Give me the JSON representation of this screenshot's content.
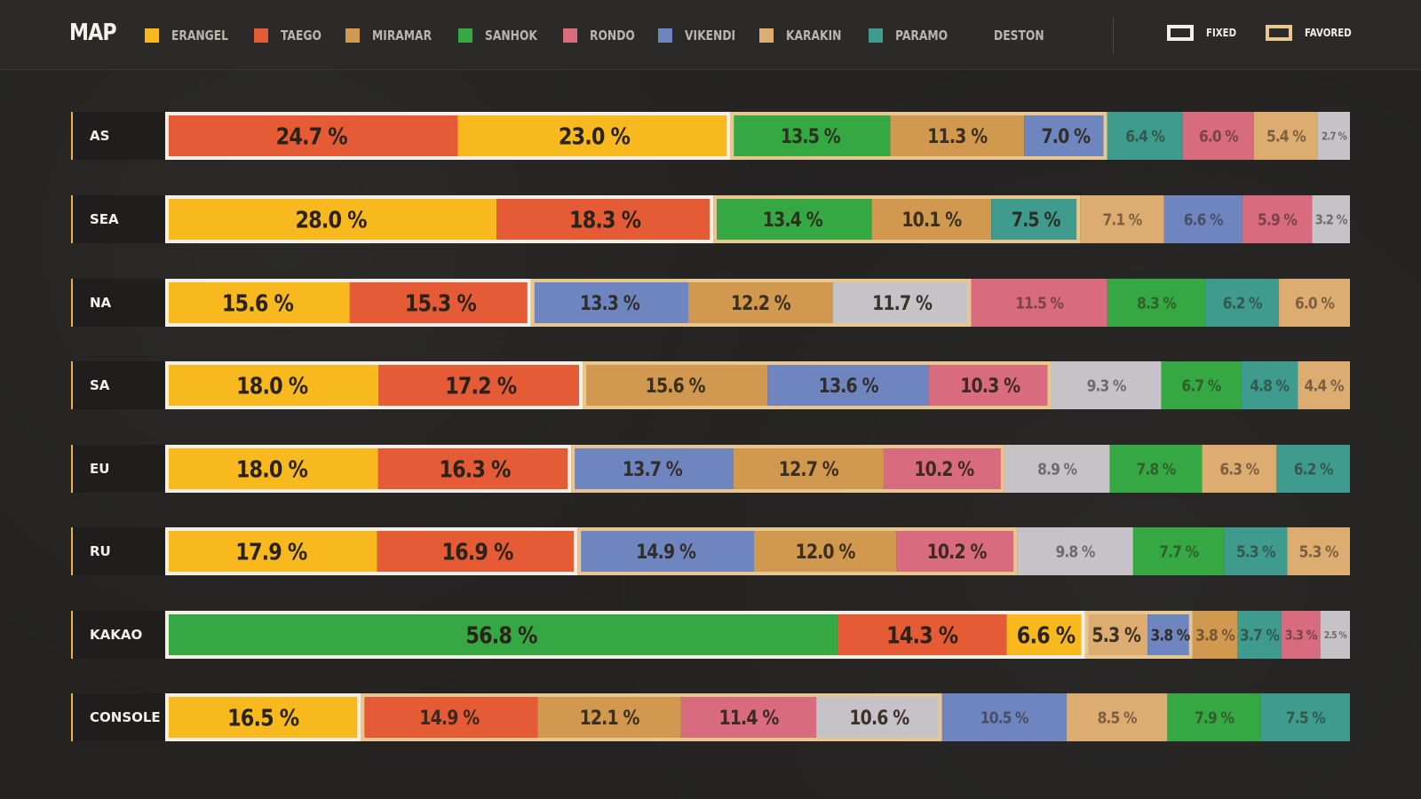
{
  "title": "MAP",
  "legend": [
    {
      "key": "erangel",
      "label": "ERANGEL",
      "color": "#f8b91e"
    },
    {
      "key": "taego",
      "label": "TAEGO",
      "color": "#e45b36"
    },
    {
      "key": "miramar",
      "label": "MIRAMAR",
      "color": "#d1994f"
    },
    {
      "key": "sanhok",
      "label": "SANHOK",
      "color": "#36a843"
    },
    {
      "key": "rondo",
      "label": "RONDO",
      "color": "#d96b7e"
    },
    {
      "key": "vikendi",
      "label": "VIKENDI",
      "color": "#6e85c0"
    },
    {
      "key": "karakin",
      "label": "KARAKIN",
      "color": "#dcac70"
    },
    {
      "key": "paramo",
      "label": "PARAMO",
      "color": "#3e9b8d"
    },
    {
      "key": "deston",
      "label": "DESTON",
      "color": "#c6c3c8"
    }
  ],
  "key_fixed": "FIXED",
  "key_favored": "FAVORED",
  "colors": {
    "fixed_border": "#f3efe6",
    "favored_border": "#e7c78f",
    "row_label_bg": "#1f1e1c",
    "row_accent": "#e9b340",
    "text_dark": "#2a231a"
  },
  "chart_data": {
    "type": "bar",
    "orientation": "horizontal-stacked",
    "unit": "%",
    "regions": [
      {
        "region": "AS",
        "segments": [
          {
            "map": "taego",
            "value": 24.7,
            "label": "24.7 %",
            "group": "fixed"
          },
          {
            "map": "erangel",
            "value": 23.0,
            "label": "23.0 %",
            "group": "fixed"
          },
          {
            "map": "sanhok",
            "value": 13.5,
            "label": "13.5 %",
            "group": "favored"
          },
          {
            "map": "miramar",
            "value": 11.3,
            "label": "11.3 %",
            "group": "favored"
          },
          {
            "map": "vikendi",
            "value": 7.0,
            "label": "7.0 %",
            "group": "favored"
          },
          {
            "map": "paramo",
            "value": 6.4,
            "label": "6.4 %",
            "group": "other"
          },
          {
            "map": "rondo",
            "value": 6.0,
            "label": "6.0 %",
            "group": "other"
          },
          {
            "map": "karakin",
            "value": 5.4,
            "label": "5.4 %",
            "group": "other"
          },
          {
            "map": "deston",
            "value": 2.7,
            "label": "2.7 %",
            "group": "other"
          }
        ]
      },
      {
        "region": "SEA",
        "segments": [
          {
            "map": "erangel",
            "value": 28.0,
            "label": "28.0 %",
            "group": "fixed"
          },
          {
            "map": "taego",
            "value": 18.3,
            "label": "18.3 %",
            "group": "fixed"
          },
          {
            "map": "sanhok",
            "value": 13.4,
            "label": "13.4 %",
            "group": "favored"
          },
          {
            "map": "miramar",
            "value": 10.1,
            "label": "10.1 %",
            "group": "favored"
          },
          {
            "map": "paramo",
            "value": 7.5,
            "label": "7.5 %",
            "group": "favored"
          },
          {
            "map": "karakin",
            "value": 7.1,
            "label": "7.1 %",
            "group": "other"
          },
          {
            "map": "vikendi",
            "value": 6.6,
            "label": "6.6 %",
            "group": "other"
          },
          {
            "map": "rondo",
            "value": 5.9,
            "label": "5.9 %",
            "group": "other"
          },
          {
            "map": "deston",
            "value": 3.2,
            "label": "3.2 %",
            "group": "other"
          }
        ]
      },
      {
        "region": "NA",
        "segments": [
          {
            "map": "erangel",
            "value": 15.6,
            "label": "15.6 %",
            "group": "fixed"
          },
          {
            "map": "taego",
            "value": 15.3,
            "label": "15.3 %",
            "group": "fixed"
          },
          {
            "map": "vikendi",
            "value": 13.3,
            "label": "13.3 %",
            "group": "favored"
          },
          {
            "map": "miramar",
            "value": 12.2,
            "label": "12.2 %",
            "group": "favored"
          },
          {
            "map": "deston",
            "value": 11.7,
            "label": "11.7 %",
            "group": "favored"
          },
          {
            "map": "rondo",
            "value": 11.5,
            "label": "11.5 %",
            "group": "other"
          },
          {
            "map": "sanhok",
            "value": 8.3,
            "label": "8.3 %",
            "group": "other"
          },
          {
            "map": "paramo",
            "value": 6.2,
            "label": "6.2 %",
            "group": "other"
          },
          {
            "map": "karakin",
            "value": 6.0,
            "label": "6.0 %",
            "group": "other"
          }
        ]
      },
      {
        "region": "SA",
        "segments": [
          {
            "map": "erangel",
            "value": 18.0,
            "label": "18.0 %",
            "group": "fixed"
          },
          {
            "map": "taego",
            "value": 17.2,
            "label": "17.2 %",
            "group": "fixed"
          },
          {
            "map": "miramar",
            "value": 15.6,
            "label": "15.6 %",
            "group": "favored"
          },
          {
            "map": "vikendi",
            "value": 13.6,
            "label": "13.6 %",
            "group": "favored"
          },
          {
            "map": "rondo",
            "value": 10.3,
            "label": "10.3 %",
            "group": "favored"
          },
          {
            "map": "deston",
            "value": 9.3,
            "label": "9.3 %",
            "group": "other"
          },
          {
            "map": "sanhok",
            "value": 6.7,
            "label": "6.7 %",
            "group": "other"
          },
          {
            "map": "paramo",
            "value": 4.8,
            "label": "4.8 %",
            "group": "other"
          },
          {
            "map": "karakin",
            "value": 4.4,
            "label": "4.4 %",
            "group": "other"
          }
        ]
      },
      {
        "region": "EU",
        "segments": [
          {
            "map": "erangel",
            "value": 18.0,
            "label": "18.0 %",
            "group": "fixed"
          },
          {
            "map": "taego",
            "value": 16.3,
            "label": "16.3 %",
            "group": "fixed"
          },
          {
            "map": "vikendi",
            "value": 13.7,
            "label": "13.7 %",
            "group": "favored"
          },
          {
            "map": "miramar",
            "value": 12.7,
            "label": "12.7 %",
            "group": "favored"
          },
          {
            "map": "rondo",
            "value": 10.2,
            "label": "10.2 %",
            "group": "favored"
          },
          {
            "map": "deston",
            "value": 8.9,
            "label": "8.9 %",
            "group": "other"
          },
          {
            "map": "sanhok",
            "value": 7.8,
            "label": "7.8 %",
            "group": "other"
          },
          {
            "map": "karakin",
            "value": 6.3,
            "label": "6.3 %",
            "group": "other"
          },
          {
            "map": "paramo",
            "value": 6.2,
            "label": "6.2 %",
            "group": "other"
          }
        ]
      },
      {
        "region": "RU",
        "segments": [
          {
            "map": "erangel",
            "value": 17.9,
            "label": "17.9 %",
            "group": "fixed"
          },
          {
            "map": "taego",
            "value": 16.9,
            "label": "16.9 %",
            "group": "fixed"
          },
          {
            "map": "vikendi",
            "value": 14.9,
            "label": "14.9 %",
            "group": "favored"
          },
          {
            "map": "miramar",
            "value": 12.0,
            "label": "12.0 %",
            "group": "favored"
          },
          {
            "map": "rondo",
            "value": 10.2,
            "label": "10.2 %",
            "group": "favored"
          },
          {
            "map": "deston",
            "value": 9.8,
            "label": "9.8 %",
            "group": "other"
          },
          {
            "map": "sanhok",
            "value": 7.7,
            "label": "7.7 %",
            "group": "other"
          },
          {
            "map": "paramo",
            "value": 5.3,
            "label": "5.3 %",
            "group": "other"
          },
          {
            "map": "karakin",
            "value": 5.3,
            "label": "5.3 %",
            "group": "other"
          }
        ]
      },
      {
        "region": "KAKAO",
        "segments": [
          {
            "map": "sanhok",
            "value": 56.8,
            "label": "56.8 %",
            "group": "fixed"
          },
          {
            "map": "taego",
            "value": 14.3,
            "label": "14.3 %",
            "group": "fixed"
          },
          {
            "map": "erangel",
            "value": 6.6,
            "label": "6.6 %",
            "group": "fixed"
          },
          {
            "map": "karakin",
            "value": 5.3,
            "label": "5.3 %",
            "group": "favored"
          },
          {
            "map": "vikendi",
            "value": 3.8,
            "label": "3.8 %",
            "group": "favored"
          },
          {
            "map": "miramar",
            "value": 3.8,
            "label": "3.8 %",
            "group": "other"
          },
          {
            "map": "paramo",
            "value": 3.7,
            "label": "3.7 %",
            "group": "other"
          },
          {
            "map": "rondo",
            "value": 3.3,
            "label": "3.3 %",
            "group": "other"
          },
          {
            "map": "deston",
            "value": 2.5,
            "label": "2.5 %",
            "group": "other"
          }
        ]
      },
      {
        "region": "CONSOLE",
        "segments": [
          {
            "map": "erangel",
            "value": 16.5,
            "label": "16.5 %",
            "group": "fixed"
          },
          {
            "map": "taego",
            "value": 14.9,
            "label": "14.9 %",
            "group": "favored"
          },
          {
            "map": "miramar",
            "value": 12.1,
            "label": "12.1 %",
            "group": "favored"
          },
          {
            "map": "rondo",
            "value": 11.4,
            "label": "11.4 %",
            "group": "favored"
          },
          {
            "map": "deston",
            "value": 10.6,
            "label": "10.6 %",
            "group": "favored"
          },
          {
            "map": "vikendi",
            "value": 10.5,
            "label": "10.5 %",
            "group": "other"
          },
          {
            "map": "karakin",
            "value": 8.5,
            "label": "8.5 %",
            "group": "other"
          },
          {
            "map": "sanhok",
            "value": 7.9,
            "label": "7.9 %",
            "group": "other"
          },
          {
            "map": "paramo",
            "value": 7.5,
            "label": "7.5 %",
            "group": "other"
          }
        ]
      }
    ]
  }
}
